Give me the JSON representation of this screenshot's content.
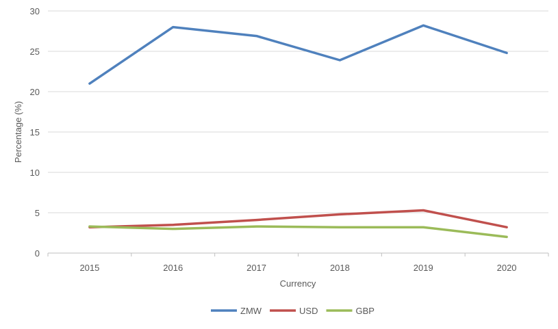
{
  "chart_data": {
    "type": "line",
    "title": "",
    "xlabel": "Currency",
    "ylabel": "Percentage (%)",
    "categories": [
      "2015",
      "2016",
      "2017",
      "2018",
      "2019",
      "2020"
    ],
    "ylim": [
      0,
      30
    ],
    "yticks": [
      0,
      5,
      10,
      15,
      20,
      25,
      30
    ],
    "grid": true,
    "legend_position": "bottom",
    "series": [
      {
        "name": "ZMW",
        "color": "#4F81BD",
        "values": [
          21.0,
          28.0,
          26.9,
          23.9,
          28.2,
          24.8
        ]
      },
      {
        "name": "USD",
        "color": "#C0504D",
        "values": [
          3.2,
          3.5,
          4.1,
          4.8,
          5.3,
          3.2
        ]
      },
      {
        "name": "GBP",
        "color": "#9BBB59",
        "values": [
          3.3,
          3.0,
          3.3,
          3.2,
          3.2,
          2.0
        ]
      }
    ]
  }
}
